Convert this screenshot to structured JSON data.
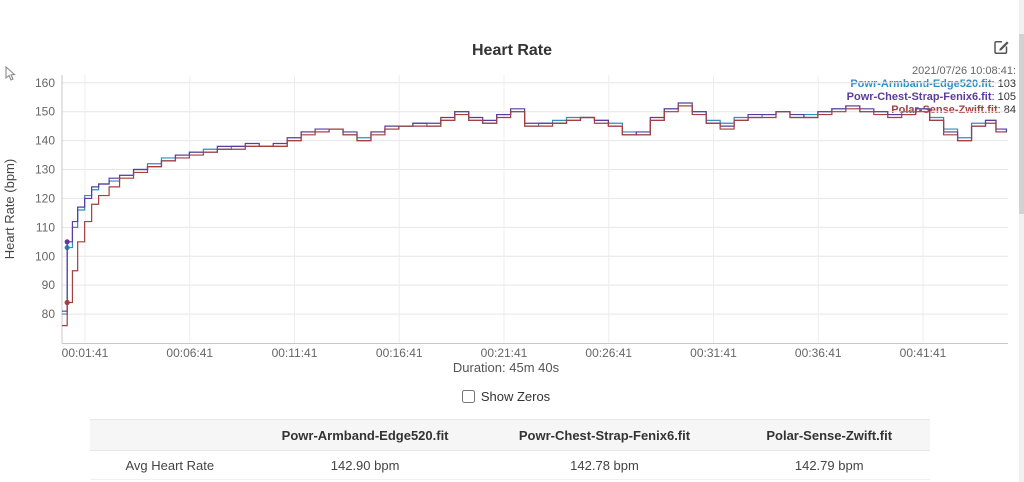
{
  "header": {
    "title": "Heart Rate"
  },
  "icons": {
    "edit": "edit-icon",
    "cursor": "mouse-cursor"
  },
  "tooltip": {
    "timestamp": "2021/07/26 10:08:41:",
    "entries": [
      {
        "label": "Powr-Armband-Edge520.fit",
        "value": "103",
        "color": "#2e8fc0"
      },
      {
        "label": "Powr-Chest-Strap-Fenix6.fit",
        "value": "105",
        "color": "#5a3d98"
      },
      {
        "label": "Polar-Sense-Zwift.fit",
        "value": "84",
        "color": "#a33f3f"
      }
    ]
  },
  "chart_data": {
    "type": "line",
    "title": "Heart Rate",
    "xlabel": "Duration: 45m 40s",
    "ylabel": "Heart Rate (bpm)",
    "ylim": [
      70,
      163
    ],
    "xlim": [
      35,
      2740
    ],
    "grid": true,
    "legend_position": "top-right",
    "yticks": [
      80,
      90,
      100,
      110,
      120,
      130,
      140,
      150,
      160
    ],
    "xticks": [
      {
        "t": 101,
        "label": "00:01:41"
      },
      {
        "t": 401,
        "label": "00:06:41"
      },
      {
        "t": 701,
        "label": "00:11:41"
      },
      {
        "t": 1001,
        "label": "00:16:41"
      },
      {
        "t": 1301,
        "label": "00:21:41"
      },
      {
        "t": 1601,
        "label": "00:26:41"
      },
      {
        "t": 1901,
        "label": "00:31:41"
      },
      {
        "t": 2201,
        "label": "00:36:41"
      },
      {
        "t": 2501,
        "label": "00:41:41"
      }
    ],
    "x": [
      35,
      50,
      65,
      80,
      100,
      120,
      140,
      170,
      200,
      240,
      280,
      320,
      360,
      400,
      440,
      480,
      520,
      560,
      600,
      640,
      680,
      720,
      760,
      800,
      840,
      880,
      920,
      960,
      1000,
      1040,
      1080,
      1120,
      1160,
      1200,
      1240,
      1280,
      1320,
      1360,
      1400,
      1440,
      1480,
      1520,
      1560,
      1600,
      1640,
      1680,
      1720,
      1760,
      1800,
      1840,
      1880,
      1920,
      1960,
      2000,
      2040,
      2080,
      2120,
      2160,
      2200,
      2240,
      2280,
      2320,
      2360,
      2400,
      2440,
      2480,
      2520,
      2560,
      2600,
      2640,
      2680,
      2710,
      2740
    ],
    "series": [
      {
        "name": "Powr-Armband-Edge520.fit",
        "color": "#2e8fc0",
        "marker": {
          "t": 50,
          "v": 103
        },
        "values": [
          80,
          103,
          110,
          116,
          121,
          123,
          125,
          126,
          128,
          130,
          132,
          134,
          135,
          136,
          137,
          137,
          138,
          138,
          138,
          138,
          140,
          143,
          143,
          144,
          142,
          141,
          143,
          144,
          145,
          146,
          145,
          147,
          150,
          147,
          146,
          149,
          150,
          145,
          146,
          147,
          148,
          148,
          147,
          146,
          143,
          142,
          147,
          151,
          152,
          150,
          147,
          146,
          148,
          148,
          149,
          150,
          148,
          149,
          150,
          151,
          152,
          150,
          150,
          149,
          150,
          151,
          148,
          144,
          141,
          146,
          147,
          143,
          144
        ]
      },
      {
        "name": "Powr-Chest-Strap-Fenix6.fit",
        "color": "#5a3d98",
        "marker": {
          "t": 50,
          "v": 105
        },
        "values": [
          81,
          105,
          112,
          117,
          120,
          124,
          125,
          127,
          128,
          130,
          131,
          133,
          135,
          136,
          136,
          138,
          138,
          139,
          138,
          139,
          141,
          143,
          144,
          144,
          143,
          140,
          143,
          145,
          145,
          146,
          146,
          148,
          150,
          148,
          147,
          149,
          151,
          146,
          146,
          146,
          147,
          148,
          147,
          145,
          142,
          143,
          148,
          151,
          153,
          150,
          146,
          145,
          147,
          149,
          149,
          150,
          149,
          148,
          150,
          151,
          152,
          151,
          150,
          149,
          149,
          151,
          147,
          143,
          140,
          145,
          147,
          144,
          143
        ]
      },
      {
        "name": "Polar-Sense-Zwift.fit",
        "color": "#a33f3f",
        "marker": {
          "t": 50,
          "v": 84
        },
        "values": [
          76,
          84,
          95,
          105,
          112,
          118,
          121,
          124,
          127,
          129,
          131,
          133,
          134,
          135,
          136,
          137,
          137,
          138,
          138,
          138,
          140,
          142,
          143,
          144,
          142,
          140,
          142,
          144,
          145,
          145,
          145,
          147,
          149,
          147,
          146,
          148,
          150,
          145,
          145,
          146,
          147,
          148,
          146,
          145,
          142,
          142,
          147,
          150,
          152,
          149,
          146,
          144,
          147,
          148,
          148,
          150,
          148,
          148,
          149,
          150,
          151,
          150,
          149,
          148,
          149,
          150,
          147,
          142,
          140,
          145,
          146,
          143,
          143
        ]
      }
    ]
  },
  "controls": {
    "show_zeros_label": "Show Zeros",
    "show_zeros_checked": false
  },
  "table": {
    "columns": [
      "",
      "Powr-Armband-Edge520.fit",
      "Powr-Chest-Strap-Fenix6.fit",
      "Polar-Sense-Zwift.fit"
    ],
    "rows": [
      {
        "label": "Avg Heart Rate",
        "values": [
          "142.90 bpm",
          "142.78 bpm",
          "142.79 bpm"
        ]
      }
    ]
  }
}
